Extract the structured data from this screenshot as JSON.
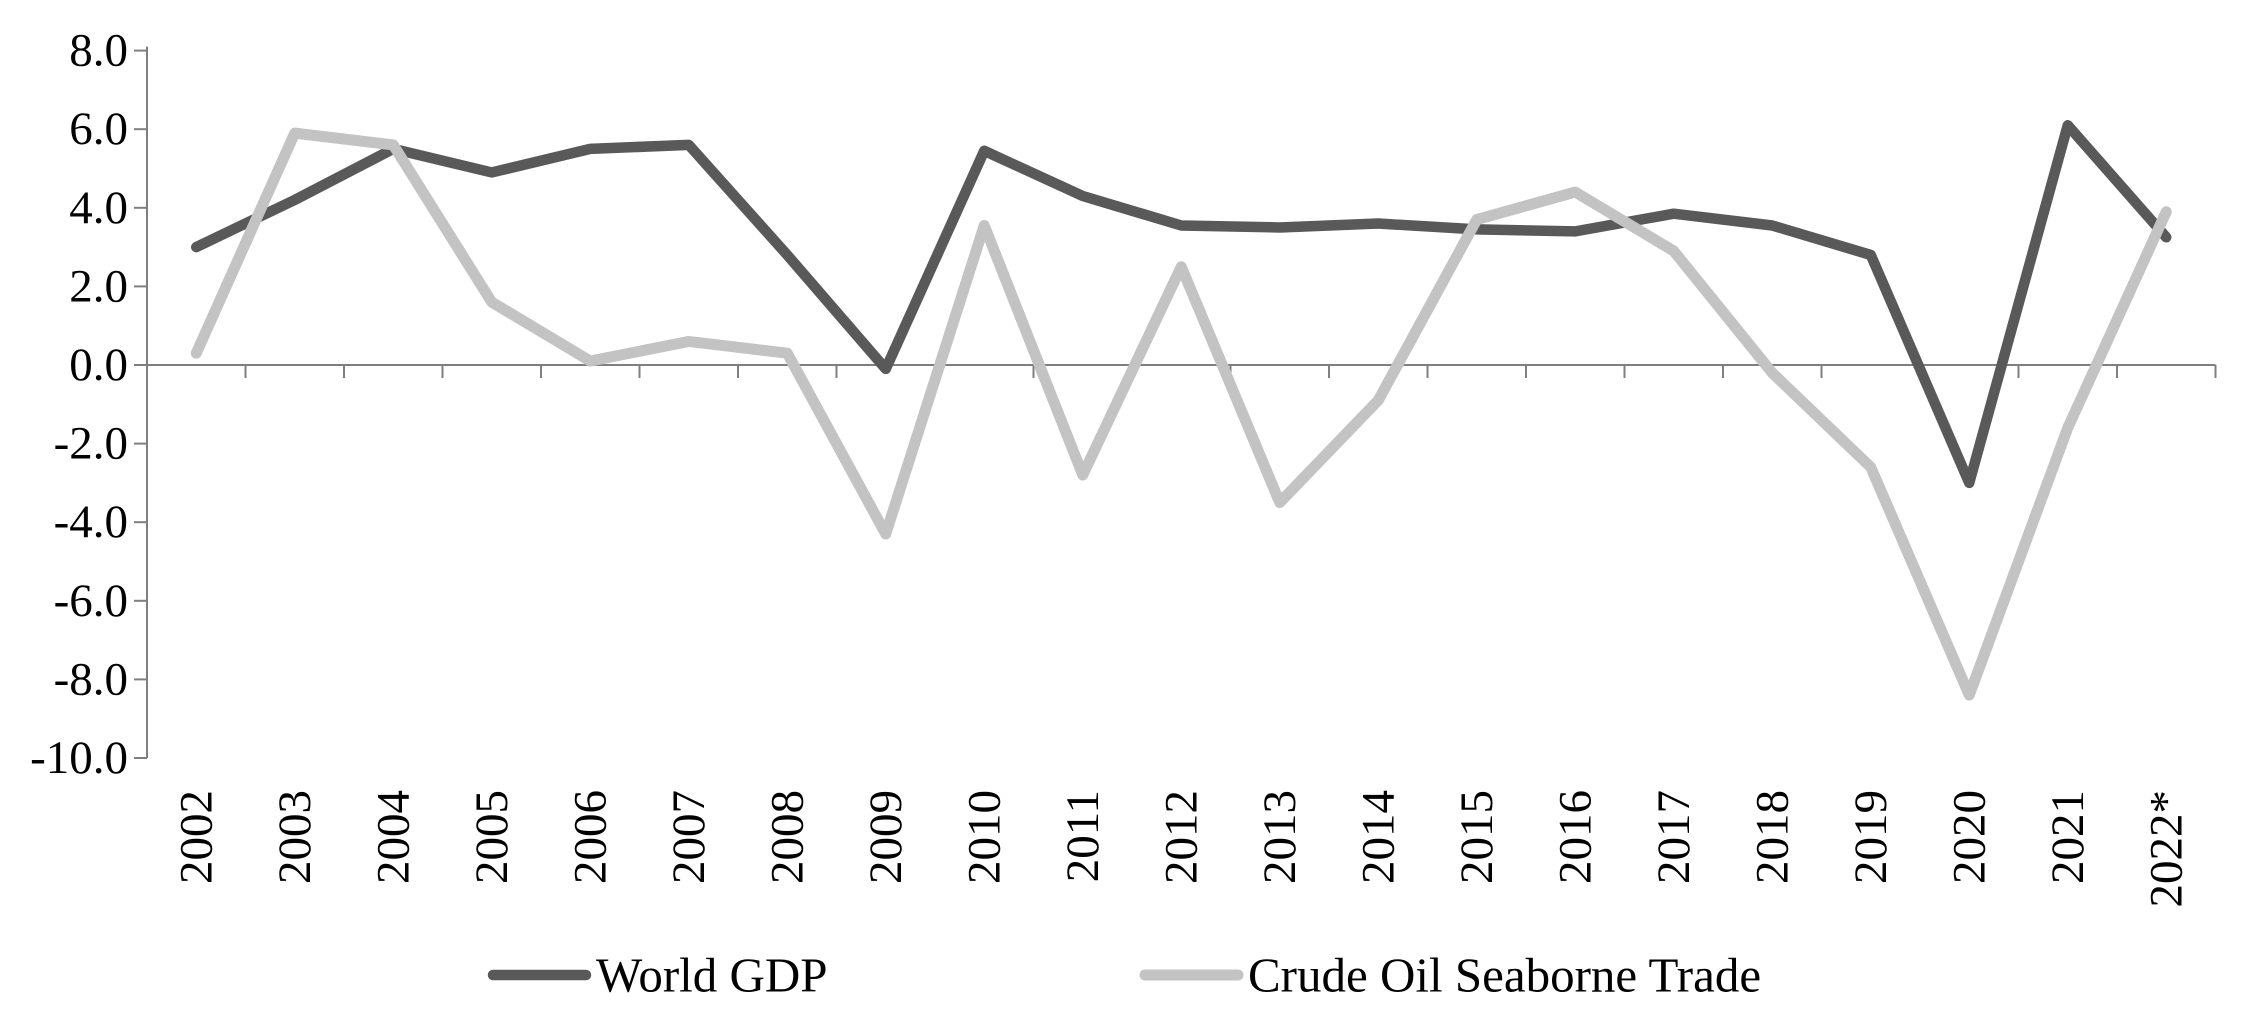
{
  "chart_data": {
    "type": "line",
    "title": "",
    "categories": [
      "2002",
      "2003",
      "2004",
      "2005",
      "2006",
      "2007",
      "2008",
      "2009",
      "2010",
      "2011",
      "2012",
      "2013",
      "2014",
      "2015",
      "2016",
      "2017",
      "2018",
      "2019",
      "2020",
      "2021",
      "2022*"
    ],
    "series": [
      {
        "name": "World GDP",
        "slug": "world-gdp",
        "color": "#595959",
        "stroke_width": 10.5,
        "values": [
          3.0,
          4.2,
          5.5,
          4.9,
          5.5,
          5.6,
          2.8,
          -0.1,
          5.45,
          4.3,
          3.55,
          3.5,
          3.6,
          3.45,
          3.4,
          3.85,
          3.55,
          2.8,
          -3.0,
          6.1,
          3.25
        ]
      },
      {
        "name": "Crude Oil Seaborne Trade",
        "slug": "crude-oil-seaborne-trade",
        "color": "#c3c3c3",
        "stroke_width": 11,
        "values": [
          0.3,
          5.9,
          5.6,
          1.6,
          0.1,
          0.6,
          0.3,
          -4.3,
          3.55,
          -2.8,
          2.5,
          -3.5,
          -0.9,
          3.7,
          4.4,
          2.9,
          -0.2,
          -2.6,
          -8.4,
          -1.6,
          3.9
        ]
      }
    ],
    "y_axis": {
      "min": -10,
      "max": 8,
      "step": 2,
      "tick_labels": [
        "8.0",
        "6.0",
        "4.0",
        "2.0",
        "0.0",
        "-2.0",
        "-4.0",
        "-6.0",
        "-8.0",
        "-10.0"
      ]
    },
    "x_axis": {
      "label_rotation": -90,
      "tick_labels": [
        "2002",
        "2003",
        "2004",
        "2005",
        "2006",
        "2007",
        "2008",
        "2009",
        "2010",
        "2011",
        "2012",
        "2013",
        "2014",
        "2015",
        "2016",
        "2017",
        "2018",
        "2019",
        "2020",
        "2021",
        "2022*"
      ]
    },
    "legend_position": "bottom",
    "grid": "none",
    "axis_color": "#7f7f7f"
  }
}
